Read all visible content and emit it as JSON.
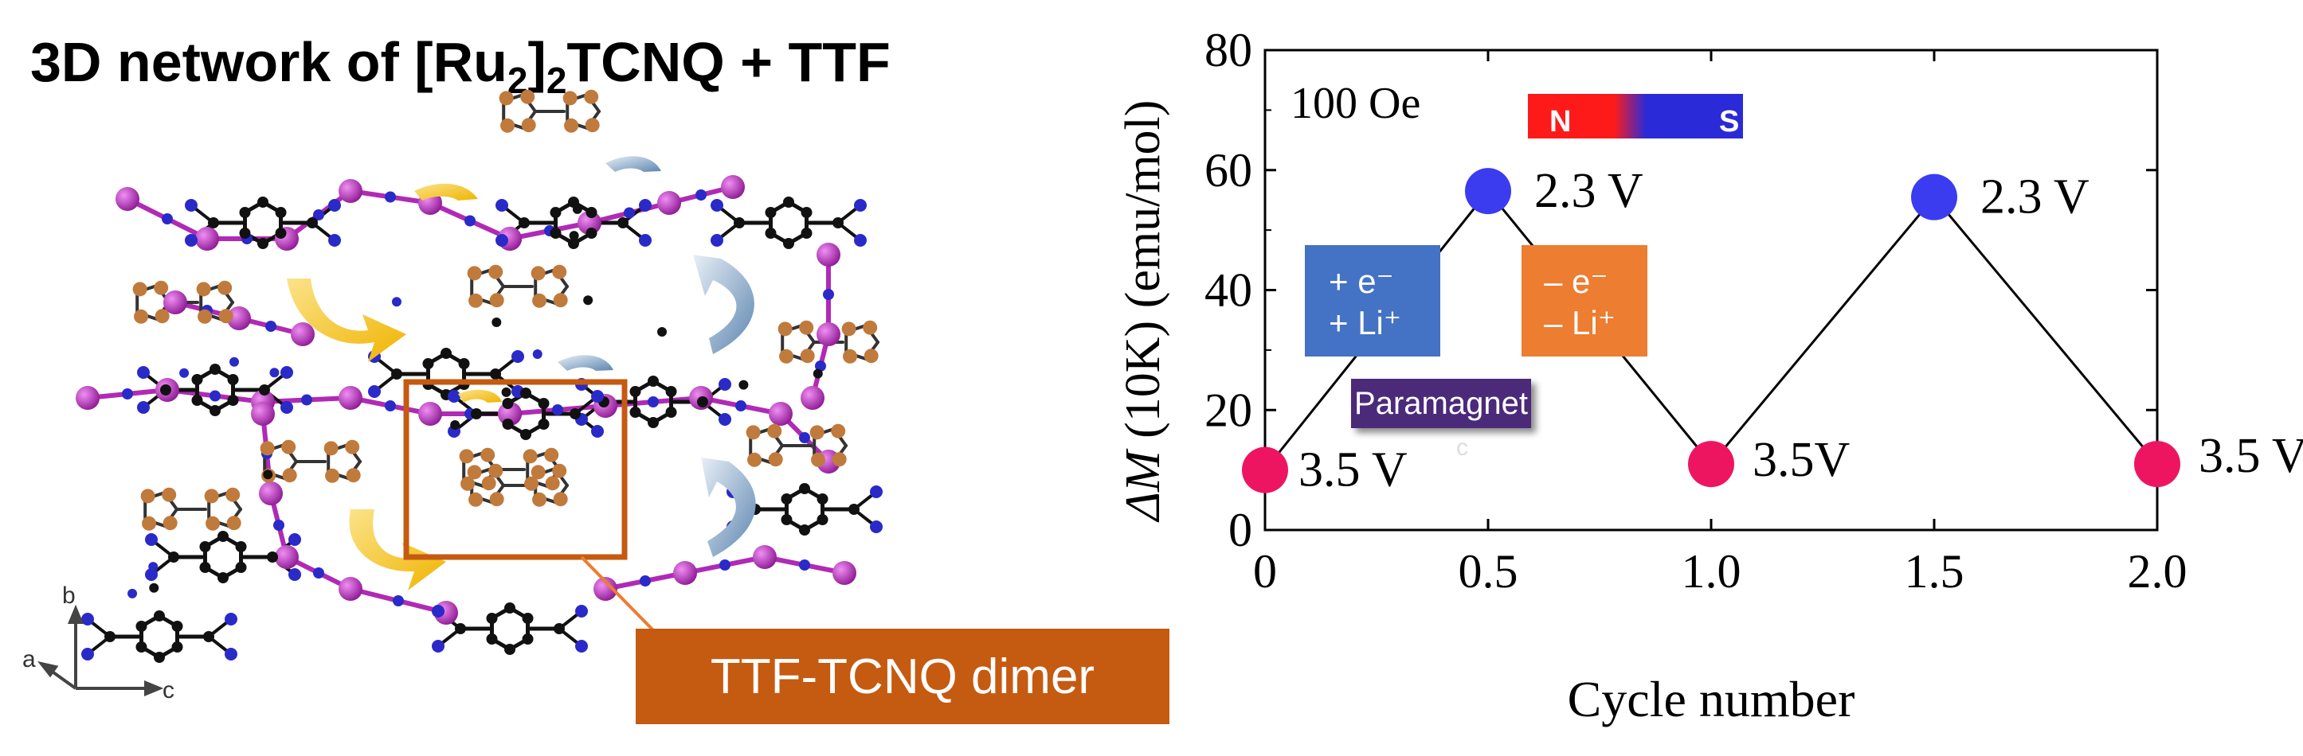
{
  "figure": {
    "title_prefix": "3D network of [Ru",
    "title_sub1": "2",
    "title_mid": "]",
    "title_sub2": "2",
    "title_suffix": "TCNQ + TTF"
  },
  "crystal": {
    "axis_labels": {
      "a": "a",
      "b": "b",
      "c": "c"
    },
    "dimer_label": "TTF-TCNQ dimer",
    "colors": {
      "ru": "#b02ab5",
      "carbon": "#111111",
      "nitrogen": "#2a2ac8",
      "sulfur": "#b8733a",
      "frame": "#c55a11",
      "arrow_yellow": "#f2c12e",
      "arrow_blue": "#6f93b8"
    }
  },
  "chart_data": {
    "type": "scatter",
    "x": [
      0,
      0.5,
      1.0,
      1.5,
      2.0
    ],
    "y": [
      10,
      56.5,
      11,
      55.5,
      11
    ],
    "point_colors": [
      "#ee1560",
      "#3b3bf0",
      "#ee1560",
      "#3b3bf0",
      "#ee1560"
    ],
    "point_labels": [
      "3.5 V",
      "2.3 V",
      "3.5V",
      "2.3 V",
      "3.5 V"
    ],
    "connected": true,
    "xlabel": "Cycle number",
    "ylabel_italic": "ΔM",
    "ylabel_rest": " (10K) (emu/mol)",
    "xlim": [
      0,
      2.0
    ],
    "ylim": [
      0,
      80
    ],
    "xticks": [
      "0",
      "0.5",
      "1.0",
      "1.5",
      "2.0"
    ],
    "yticks": [
      "0",
      "20",
      "40",
      "60",
      "80"
    ],
    "grid": false,
    "annotations": {
      "field": "100 Oe",
      "magnet_n": "N",
      "magnet_s": "S",
      "reduction_line1": "+ e⁻",
      "reduction_line2": "+ Li⁺",
      "oxidation_line1": "– e⁻",
      "oxidation_line2": "– Li⁺",
      "paramagnet": "Paramagnet",
      "stray_c": "c"
    },
    "colors": {
      "reduction_box": "#4472c4",
      "oxidation_box": "#ed7d31",
      "paramagnet_box": "#4b2a7a"
    }
  }
}
